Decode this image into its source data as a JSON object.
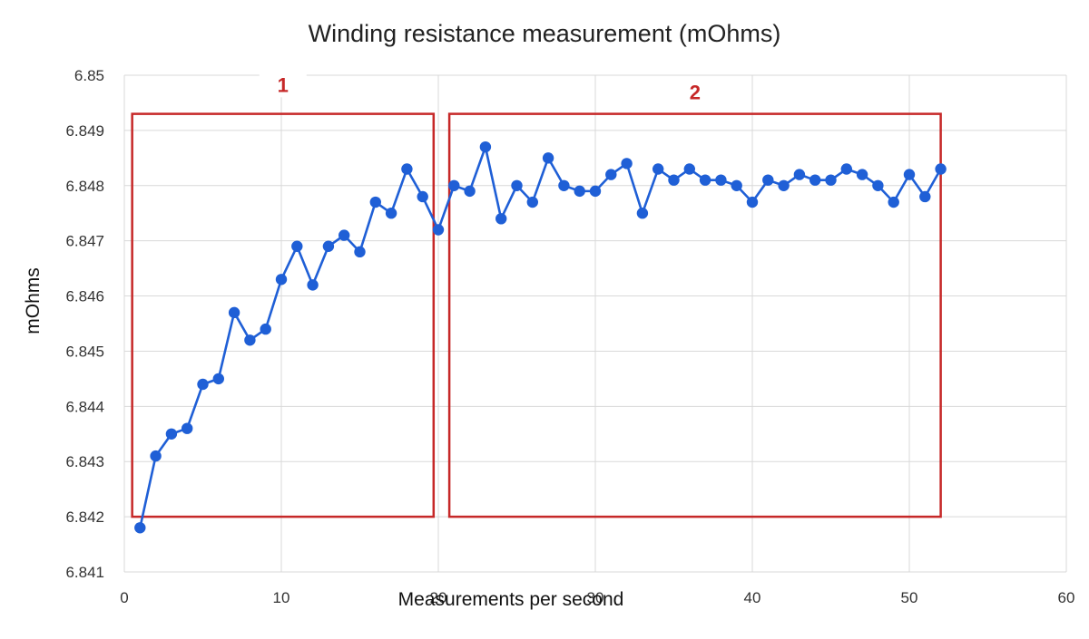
{
  "chart_data": {
    "type": "line",
    "title": "Winding resistance measurement (mOhms)",
    "xlabel": "Measurements per second",
    "ylabel": "mOhms",
    "xlim": [
      0,
      60
    ],
    "ylim": [
      6.841,
      6.85
    ],
    "x_ticks": [
      0,
      10,
      20,
      30,
      40,
      50,
      60
    ],
    "x_tick_labels": [
      "0",
      "10",
      "20",
      "30",
      "40",
      "50",
      "60"
    ],
    "y_ticks": [
      6.841,
      6.842,
      6.843,
      6.844,
      6.845,
      6.846,
      6.847,
      6.848,
      6.849,
      6.85
    ],
    "y_tick_labels": [
      "6.841",
      "6.842",
      "6.843",
      "6.844",
      "6.845",
      "6.846",
      "6.847",
      "6.848",
      "6.849",
      "6.85"
    ],
    "grid": true,
    "legend": "none",
    "series": [
      {
        "color": "#1f5fd6",
        "marker": "circle",
        "x": [
          1,
          2,
          3,
          4,
          5,
          6,
          7,
          8,
          9,
          10,
          11,
          12,
          13,
          14,
          15,
          16,
          17,
          18,
          19,
          20,
          21,
          22,
          23,
          24,
          25,
          26,
          27,
          28,
          29,
          30,
          31,
          32,
          33,
          34,
          35,
          36,
          37,
          38,
          39,
          40,
          41,
          42,
          43,
          44,
          45,
          46,
          47,
          48,
          49,
          50,
          51,
          52
        ],
        "values": [
          6.8418,
          6.8431,
          6.8435,
          6.8436,
          6.8444,
          6.8445,
          6.8457,
          6.8452,
          6.8454,
          6.8463,
          6.8469,
          6.8462,
          6.8469,
          6.8471,
          6.8468,
          6.8477,
          6.8475,
          6.8483,
          6.8478,
          6.8472,
          6.848,
          6.8479,
          6.8487,
          6.8474,
          6.848,
          6.8477,
          6.8485,
          6.848,
          6.8479,
          6.8479,
          6.8482,
          6.8484,
          6.8475,
          6.8483,
          6.8481,
          6.8483,
          6.8481,
          6.8481,
          6.848,
          6.8477,
          6.8481,
          6.848,
          6.8482,
          6.8481,
          6.8481,
          6.8483,
          6.8482,
          6.848,
          6.8477,
          6.8482,
          6.8478,
          6.8483
        ]
      }
    ],
    "annotations": [
      {
        "label": "1",
        "x_range": [
          0.5,
          19.7
        ],
        "y_range": [
          6.842,
          6.8493
        ],
        "color": "#c62828"
      },
      {
        "label": "2",
        "x_range": [
          20.7,
          52.0
        ],
        "y_range": [
          6.842,
          6.8493
        ],
        "color": "#c62828"
      }
    ]
  }
}
